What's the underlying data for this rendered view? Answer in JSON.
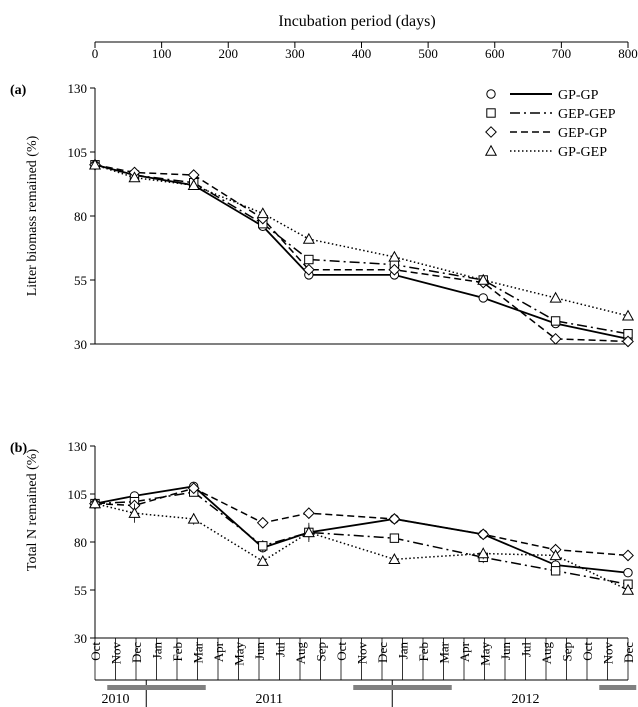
{
  "chart_data": [
    {
      "type": "line",
      "panel_label": "(a)",
      "top_axis": {
        "label": "Incubation period (days)",
        "ticks": [
          0,
          100,
          200,
          300,
          400,
          500,
          600,
          700,
          800
        ],
        "lim": [
          0,
          800
        ]
      },
      "ylabel": "Litter  biomass remained  (%)",
      "ylim": [
        30,
        130
      ],
      "yticks": [
        30,
        55,
        80,
        105,
        130
      ],
      "grid": false,
      "legend_position": "top-right",
      "x": [
        0,
        60,
        150,
        255,
        325,
        455,
        590,
        700,
        810
      ],
      "series": [
        {
          "name": "GP-GP",
          "marker": "circle",
          "dash": "solid",
          "values": [
            100,
            96,
            92,
            76,
            57,
            57,
            48,
            38,
            32
          ]
        },
        {
          "name": "GEP-GEP",
          "marker": "square",
          "dash": "dashdot",
          "values": [
            100,
            96,
            93,
            77,
            63,
            61,
            55,
            39,
            34
          ]
        },
        {
          "name": "GEP-GP",
          "marker": "diamond",
          "dash": "dashed",
          "values": [
            100,
            97,
            96,
            79,
            59,
            59,
            54,
            32,
            31
          ]
        },
        {
          "name": "GP-GEP",
          "marker": "triangle",
          "dash": "dotted",
          "values": [
            100,
            95,
            92,
            81,
            71,
            64,
            55,
            48,
            41
          ]
        }
      ]
    },
    {
      "type": "line",
      "panel_label": "(b)",
      "ylabel": "Total N remained  (%)",
      "ylim": [
        30,
        130
      ],
      "yticks": [
        30,
        55,
        80,
        105,
        130
      ],
      "grid": false,
      "x": [
        0,
        60,
        150,
        255,
        325,
        455,
        590,
        700,
        810
      ],
      "months": [
        "Oct",
        "Nov",
        "Dec",
        "Jan",
        "Feb",
        "Mar",
        "Apr",
        "May",
        "Jun",
        "Jul",
        "Aug",
        "Sep",
        "Oct",
        "Nov",
        "Dec",
        "Jan",
        "Feb",
        "Mar",
        "Apr",
        "May",
        "Jun",
        "Jul",
        "Aug",
        "Sep",
        "Oct",
        "Nov",
        "Dec"
      ],
      "years": [
        "2010",
        "2011",
        "2012"
      ],
      "series": [
        {
          "name": "GP-GP",
          "marker": "circle",
          "dash": "solid",
          "values": [
            100,
            104,
            109,
            77,
            85,
            92,
            84,
            68,
            64
          ],
          "err": [
            0,
            1.5,
            1,
            2,
            2,
            1,
            1,
            1,
            1
          ]
        },
        {
          "name": "GEP-GEP",
          "marker": "square",
          "dash": "dashdot",
          "values": [
            100,
            101,
            106,
            78,
            85,
            82,
            72,
            65,
            58
          ],
          "err": [
            0,
            2,
            2,
            3,
            4,
            1,
            3,
            2,
            2
          ]
        },
        {
          "name": "GEP-GP",
          "marker": "diamond",
          "dash": "dashed",
          "values": [
            100,
            99,
            108,
            90,
            95,
            92,
            84,
            76,
            73
          ],
          "err": [
            0,
            2,
            1,
            2,
            2,
            1,
            1,
            3,
            2
          ]
        },
        {
          "name": "GP-GEP",
          "marker": "triangle",
          "dash": "dotted",
          "values": [
            100,
            95,
            92,
            70,
            85,
            71,
            74,
            73,
            55
          ],
          "err": [
            0,
            5,
            3,
            2,
            5,
            2,
            3,
            3,
            2
          ]
        }
      ]
    }
  ]
}
